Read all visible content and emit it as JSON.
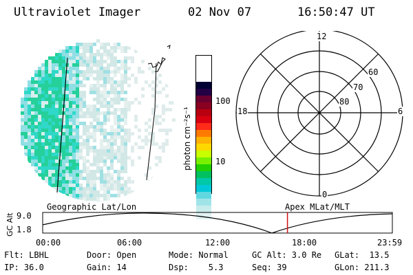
{
  "header": {
    "instrument": "Ultraviolet Imager",
    "date": "02 Nov 07",
    "time": "16:50:47 UT"
  },
  "colorbar": {
    "unit_label": "photon cm⁻²s⁻¹",
    "tick_labels": [
      "100",
      "10"
    ],
    "colors": [
      "#000033",
      "#220044",
      "#6a0030",
      "#8a0020",
      "#b80010",
      "#d80010",
      "#ff2a1a",
      "#ff7a00",
      "#ffb200",
      "#ffd800",
      "#c8ff00",
      "#78f000",
      "#20d000",
      "#00c060",
      "#00c8a8",
      "#00c8d8",
      "#60d8e0",
      "#a0e4e8",
      "#c8ecec",
      "#e2f2f2"
    ]
  },
  "polar": {
    "clock_labels": {
      "top": "12",
      "bottom": "0",
      "left": "18",
      "right": "6"
    },
    "lat_labels": [
      "60",
      "70",
      "80"
    ]
  },
  "timeline": {
    "left_label": "Geographic Lat/Lon",
    "right_label": "Apex MLat/MLT",
    "y_axis_label": "GC Alt",
    "y_ticks": [
      "9.0",
      "1.8"
    ],
    "x_ticks": [
      "00:00",
      "06:00",
      "12:00",
      "18:00",
      "23:59"
    ],
    "current_time_fraction": 0.7
  },
  "status": {
    "row1": {
      "flt": "Flt: LBHL",
      "door": "Door: Open",
      "mode": "Mode: Normal",
      "gcalt": "GC Alt: 3.0 Re",
      "glat": "GLat:  13.5"
    },
    "row2": {
      "ip": "IP: 36.0",
      "gain": "Gain: 14",
      "dsp": "Dsp:    5.3",
      "seq": "Seq: 39",
      "glon": "GLon: 211.3"
    }
  }
}
